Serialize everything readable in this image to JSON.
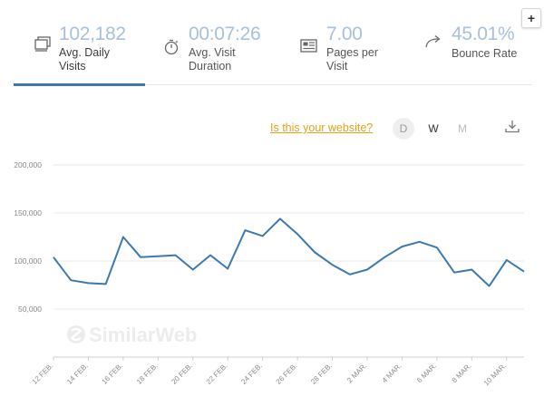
{
  "metrics": [
    {
      "value": "102,182",
      "label": "Avg. Daily Visits",
      "icon": "visits-icon",
      "active": true
    },
    {
      "value": "00:07:26",
      "label": "Avg. Visit Duration",
      "icon": "stopwatch-icon",
      "active": false
    },
    {
      "value": "7.00",
      "label": "Pages per Visit",
      "icon": "pages-icon",
      "active": false
    },
    {
      "value": "45.01%",
      "label": "Bounce Rate",
      "icon": "bounce-arrow-icon",
      "active": false
    }
  ],
  "toolbar": {
    "website_link": "Is this your website?",
    "periods": [
      "D",
      "W",
      "M"
    ],
    "selected_period": "W",
    "plus_label": "+"
  },
  "watermark": "SimilarWeb",
  "colors": {
    "accent": "#3c79b2",
    "metric_value": "#a8c0dc",
    "link": "#e6a218"
  },
  "chart_data": {
    "type": "line",
    "ylim": [
      0,
      200000
    ],
    "yticks": [
      50000,
      100000,
      150000,
      200000
    ],
    "ytick_labels": [
      "50,000",
      "100,000",
      "150,000",
      "200,000"
    ],
    "xtick_labels": [
      "12 FEB.",
      "14 FEB.",
      "16 FEB.",
      "18 FEB.",
      "20 FEB.",
      "22 FEB.",
      "24 FEB.",
      "26 FEB.",
      "28 FEB.",
      "2 MAR.",
      "4 MAR.",
      "6 MAR.",
      "8 MAR.",
      "10 MAR."
    ],
    "x": [
      "12 Feb",
      "13 Feb",
      "14 Feb",
      "15 Feb",
      "16 Feb",
      "17 Feb",
      "18 Feb",
      "19 Feb",
      "20 Feb",
      "21 Feb",
      "22 Feb",
      "23 Feb",
      "24 Feb",
      "25 Feb",
      "26 Feb",
      "27 Feb",
      "28 Feb",
      "1 Mar",
      "2 Mar",
      "3 Mar",
      "4 Mar",
      "5 Mar",
      "6 Mar",
      "7 Mar",
      "8 Mar",
      "9 Mar",
      "10 Mar",
      "11 Mar"
    ],
    "values": [
      104000,
      80000,
      77000,
      76000,
      125000,
      104000,
      105000,
      106000,
      91000,
      106000,
      92000,
      132000,
      126000,
      144000,
      128000,
      109000,
      96000,
      86000,
      91000,
      104000,
      115000,
      120000,
      114000,
      88000,
      91000,
      74000,
      101000,
      89000
    ],
    "grid": true
  }
}
